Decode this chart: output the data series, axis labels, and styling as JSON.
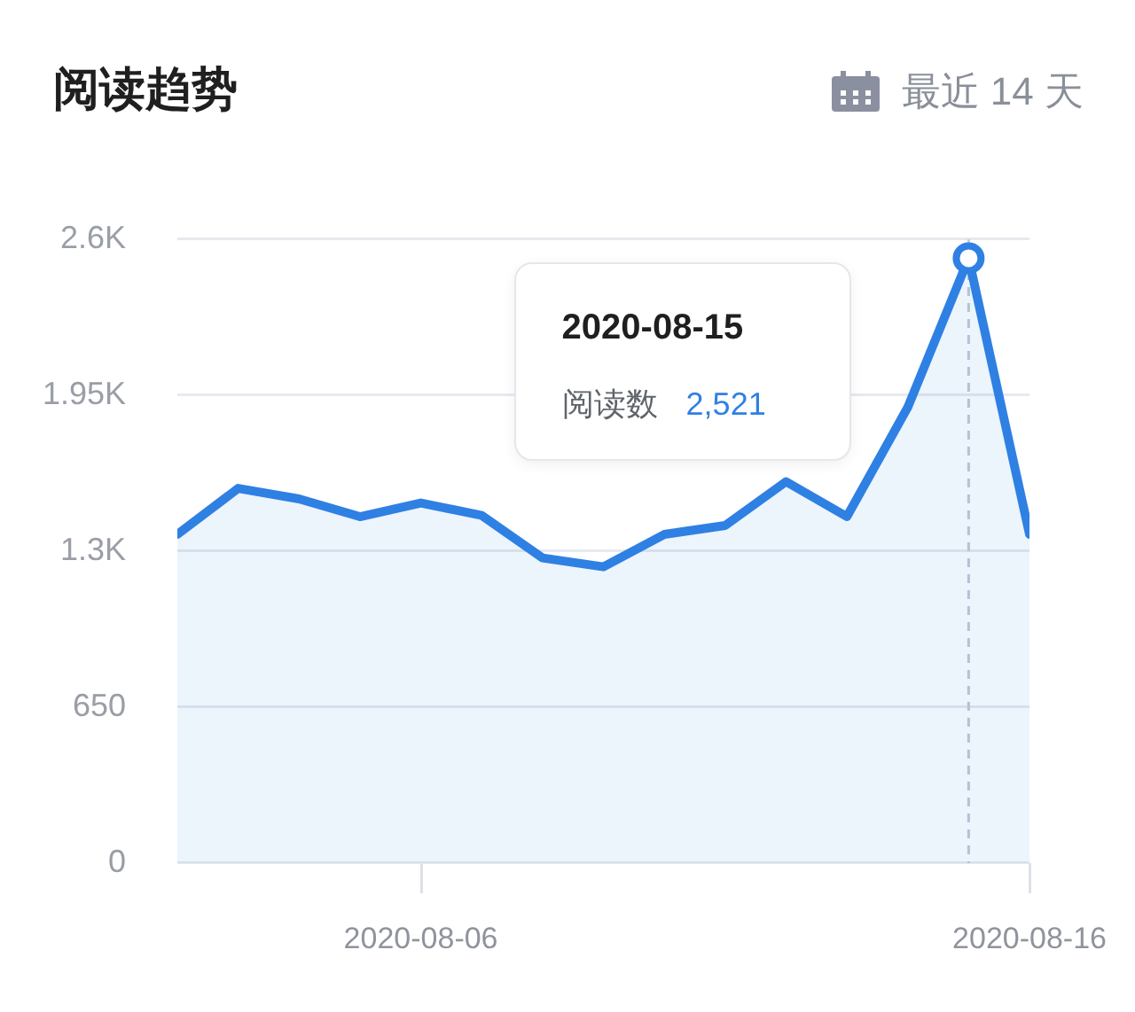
{
  "chart_data": {
    "type": "area",
    "title": "阅读趋势",
    "subtitle": "最近 14 天",
    "x": [
      "2020-08-02",
      "2020-08-03",
      "2020-08-04",
      "2020-08-05",
      "2020-08-06",
      "2020-08-07",
      "2020-08-08",
      "2020-08-09",
      "2020-08-10",
      "2020-08-11",
      "2020-08-12",
      "2020-08-13",
      "2020-08-14",
      "2020-08-15",
      "2020-08-16"
    ],
    "series": [
      {
        "color": "#2f80e3",
        "values": [
          1370,
          1562,
          1518,
          1444,
          1501,
          1449,
          1272,
          1235,
          1370,
          1407,
          1590,
          1444,
          1900,
          2521,
          1370
        ]
      },
      {
        "type": "scatter",
        "x": [
          "2020-08-15"
        ],
        "values": [
          2521
        ],
        "color": "#2f80e3",
        "marker": "circle"
      }
    ],
    "xlim": [
      "2020-08-02",
      "2020-08-16"
    ],
    "xticks": [
      "2020-08-06",
      "2020-08-16"
    ],
    "ylim": [
      0,
      2600
    ],
    "yticks": [
      0,
      650,
      {
        "value": 1300,
        "label": "1.3K"
      },
      {
        "value": 1950,
        "label": "1.95K"
      },
      {
        "value": 2600,
        "label": "2.6K"
      }
    ],
    "grid": "y",
    "ref_lines": [
      {
        "axis": "x",
        "value": "2020-08-15",
        "line_style": "dashed",
        "color": "#c3c8d1"
      }
    ],
    "annotations": [
      "2020-08-15",
      "阅读数",
      "2,521"
    ]
  }
}
